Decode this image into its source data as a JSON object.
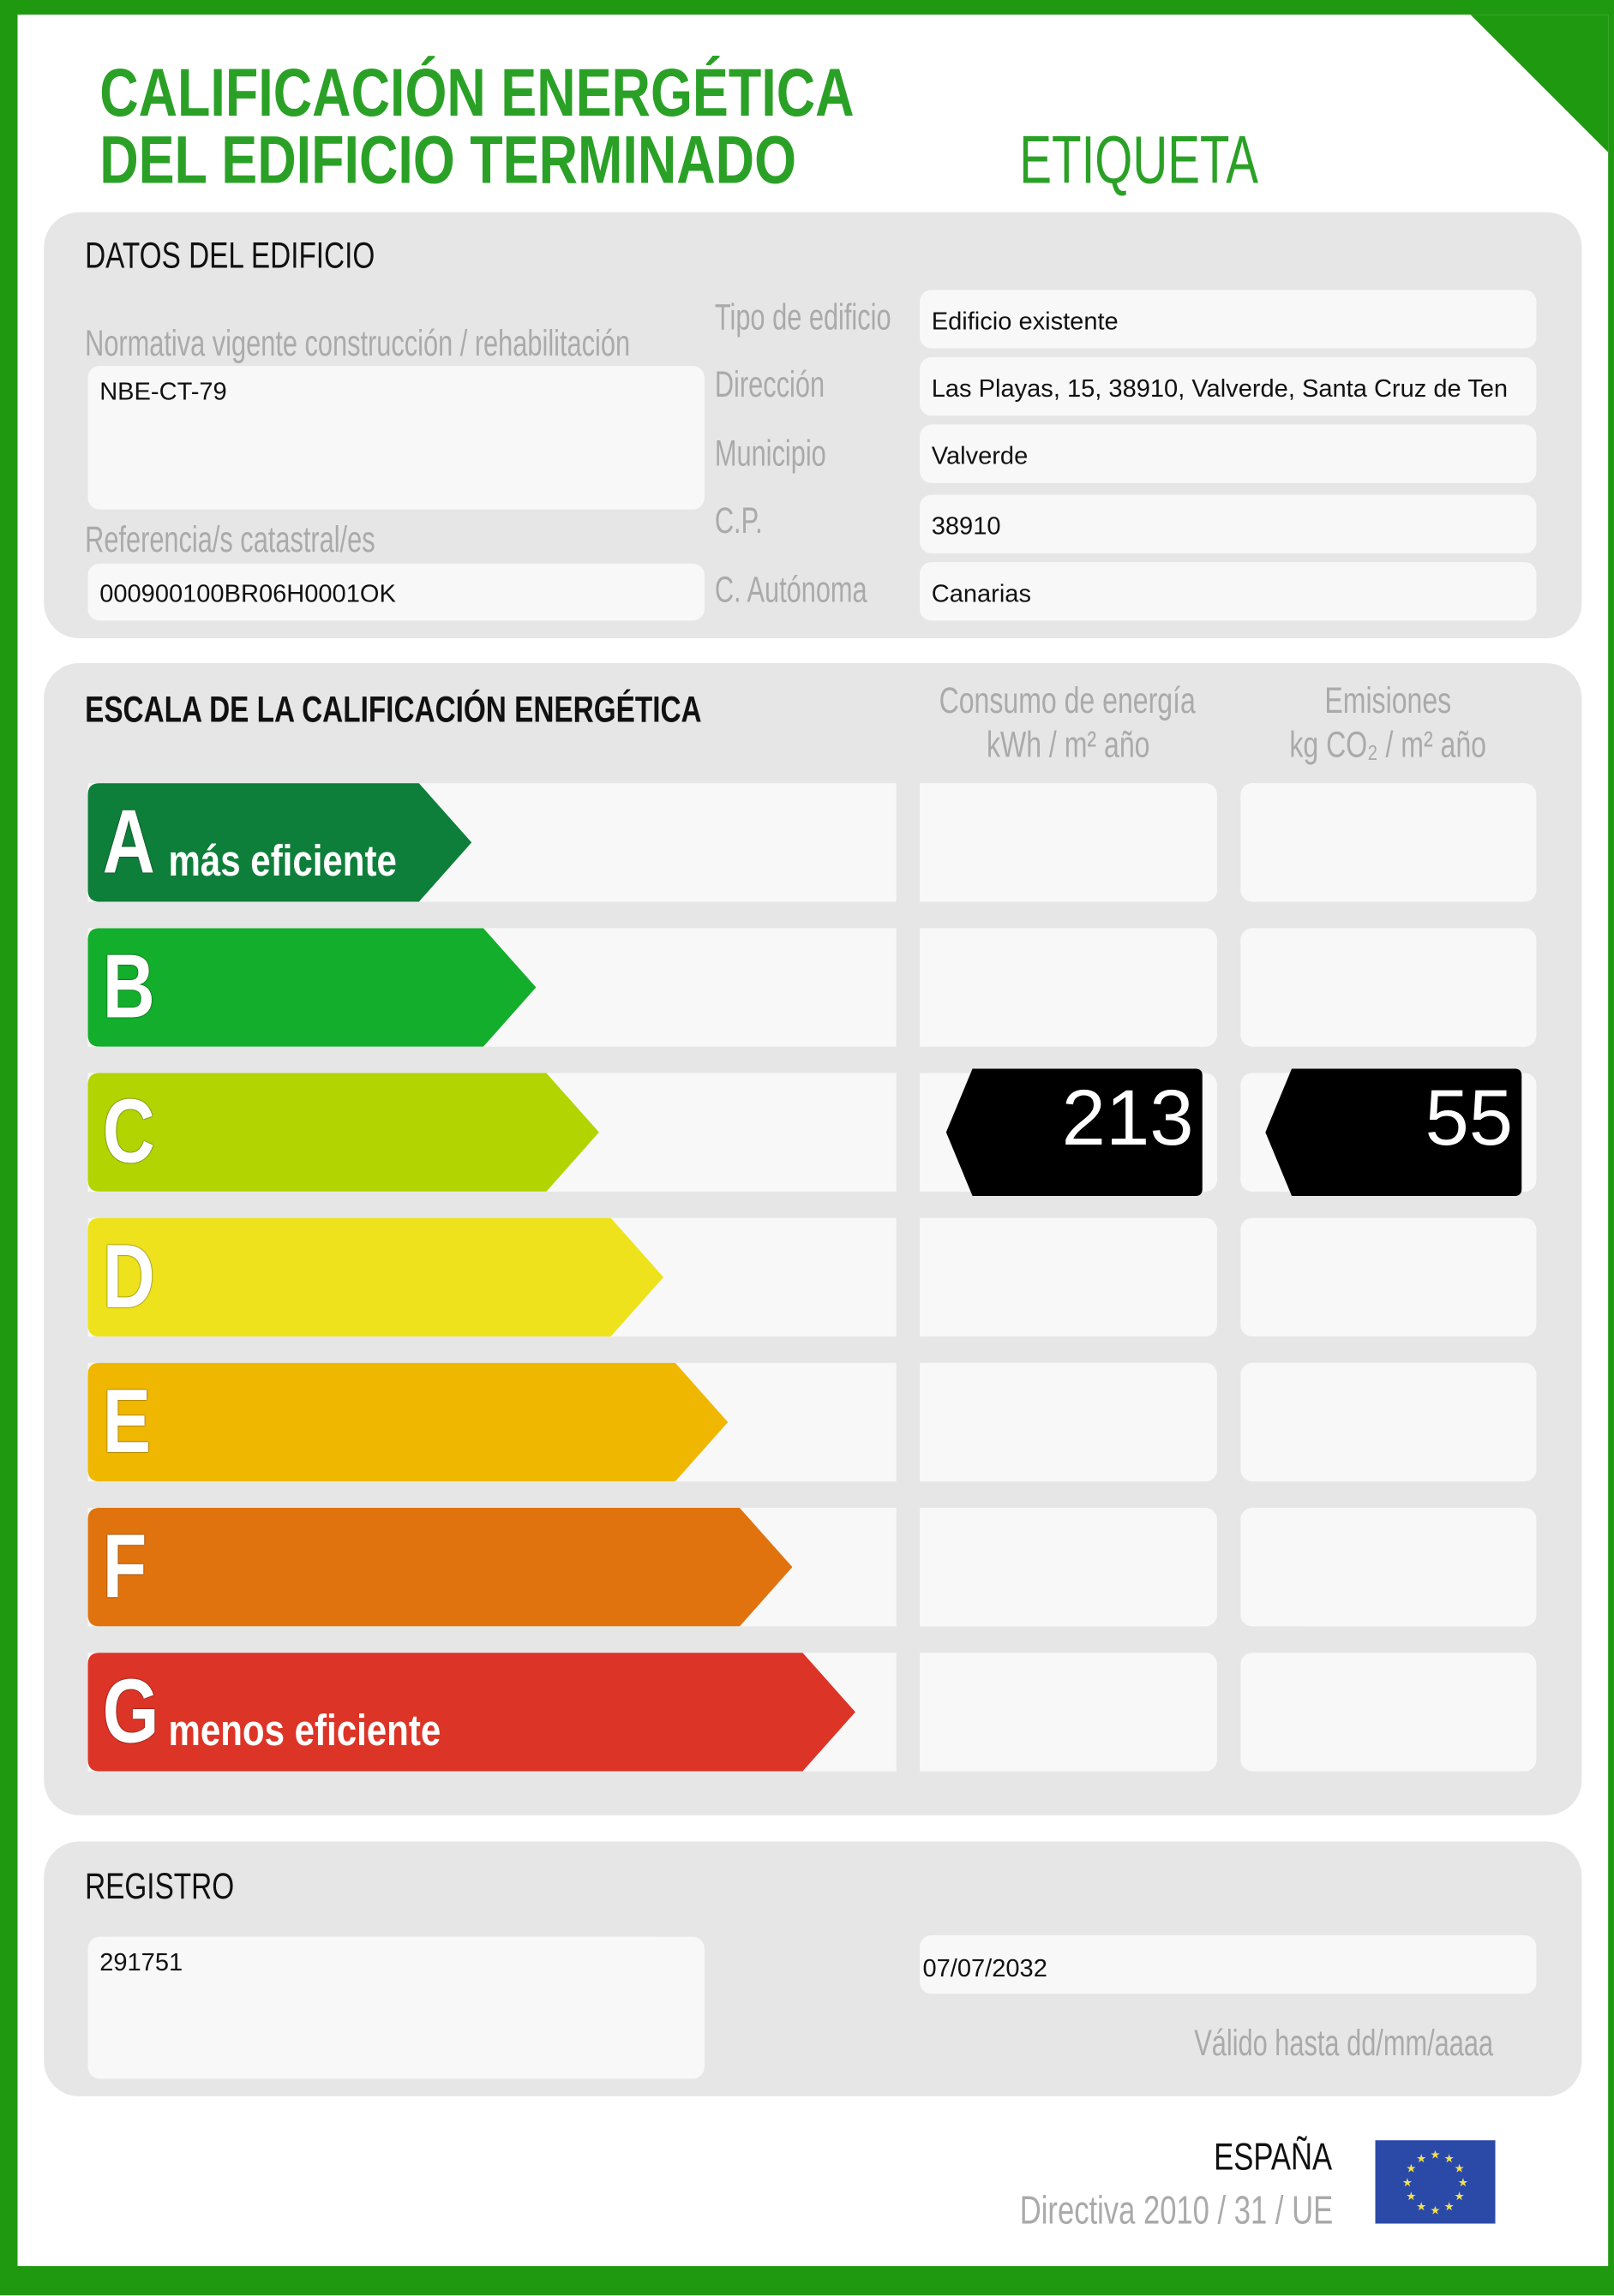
{
  "header": {
    "title_line1": "CALIFICACIÓN ENERGÉTICA",
    "title_line2": "DEL EDIFICIO TERMINADO",
    "label": "ETIQUETA"
  },
  "building": {
    "heading": "DATOS DEL EDIFICIO",
    "normativa_label": "Normativa vigente construcción / rehabilitación",
    "normativa_value": "NBE-CT-79",
    "catastral_label": "Referencia/s catastral/es",
    "catastral_value": "000900100BR06H0001OK",
    "fields": [
      {
        "label": "Tipo de edificio",
        "value": "Edificio existente"
      },
      {
        "label": "Dirección",
        "value": "Las Playas, 15, 38910, Valverde, Santa Cruz de Ten"
      },
      {
        "label": "Municipio",
        "value": "Valverde"
      },
      {
        "label": "C.P.",
        "value": "38910"
      },
      {
        "label": "C. Autónoma",
        "value": "Canarias"
      }
    ]
  },
  "scale": {
    "heading": "ESCALA DE LA CALIFICACIÓN ENERGÉTICA",
    "col1_line1": "Consumo de energía",
    "col1_line2": "kWh / m² año",
    "col2_line1": "Emisiones",
    "col2_line2": "kg CO₂ / m² año",
    "classes": [
      {
        "letter": "A",
        "sub": "más eficiente",
        "color": "#0e7f3a"
      },
      {
        "letter": "B",
        "sub": "",
        "color": "#13ae2b"
      },
      {
        "letter": "C",
        "sub": "",
        "color": "#b2d400"
      },
      {
        "letter": "D",
        "sub": "",
        "color": "#ede21b"
      },
      {
        "letter": "E",
        "sub": "",
        "color": "#f0b700"
      },
      {
        "letter": "F",
        "sub": "",
        "color": "#e1730f"
      },
      {
        "letter": "G",
        "sub": "menos eficiente",
        "color": "#dc3426"
      }
    ],
    "rating_class": "C",
    "energy_value": "213",
    "emissions_value": "55"
  },
  "registry": {
    "heading": "REGISTRO",
    "number": "291751",
    "valid_until": "07/07/2032",
    "valid_label": "Válido hasta dd/mm/aaaa"
  },
  "footer": {
    "country": "ESPAÑA",
    "directive": "Directiva 2010 / 31 / UE",
    "flag_icon": "eu-flag-icon"
  }
}
